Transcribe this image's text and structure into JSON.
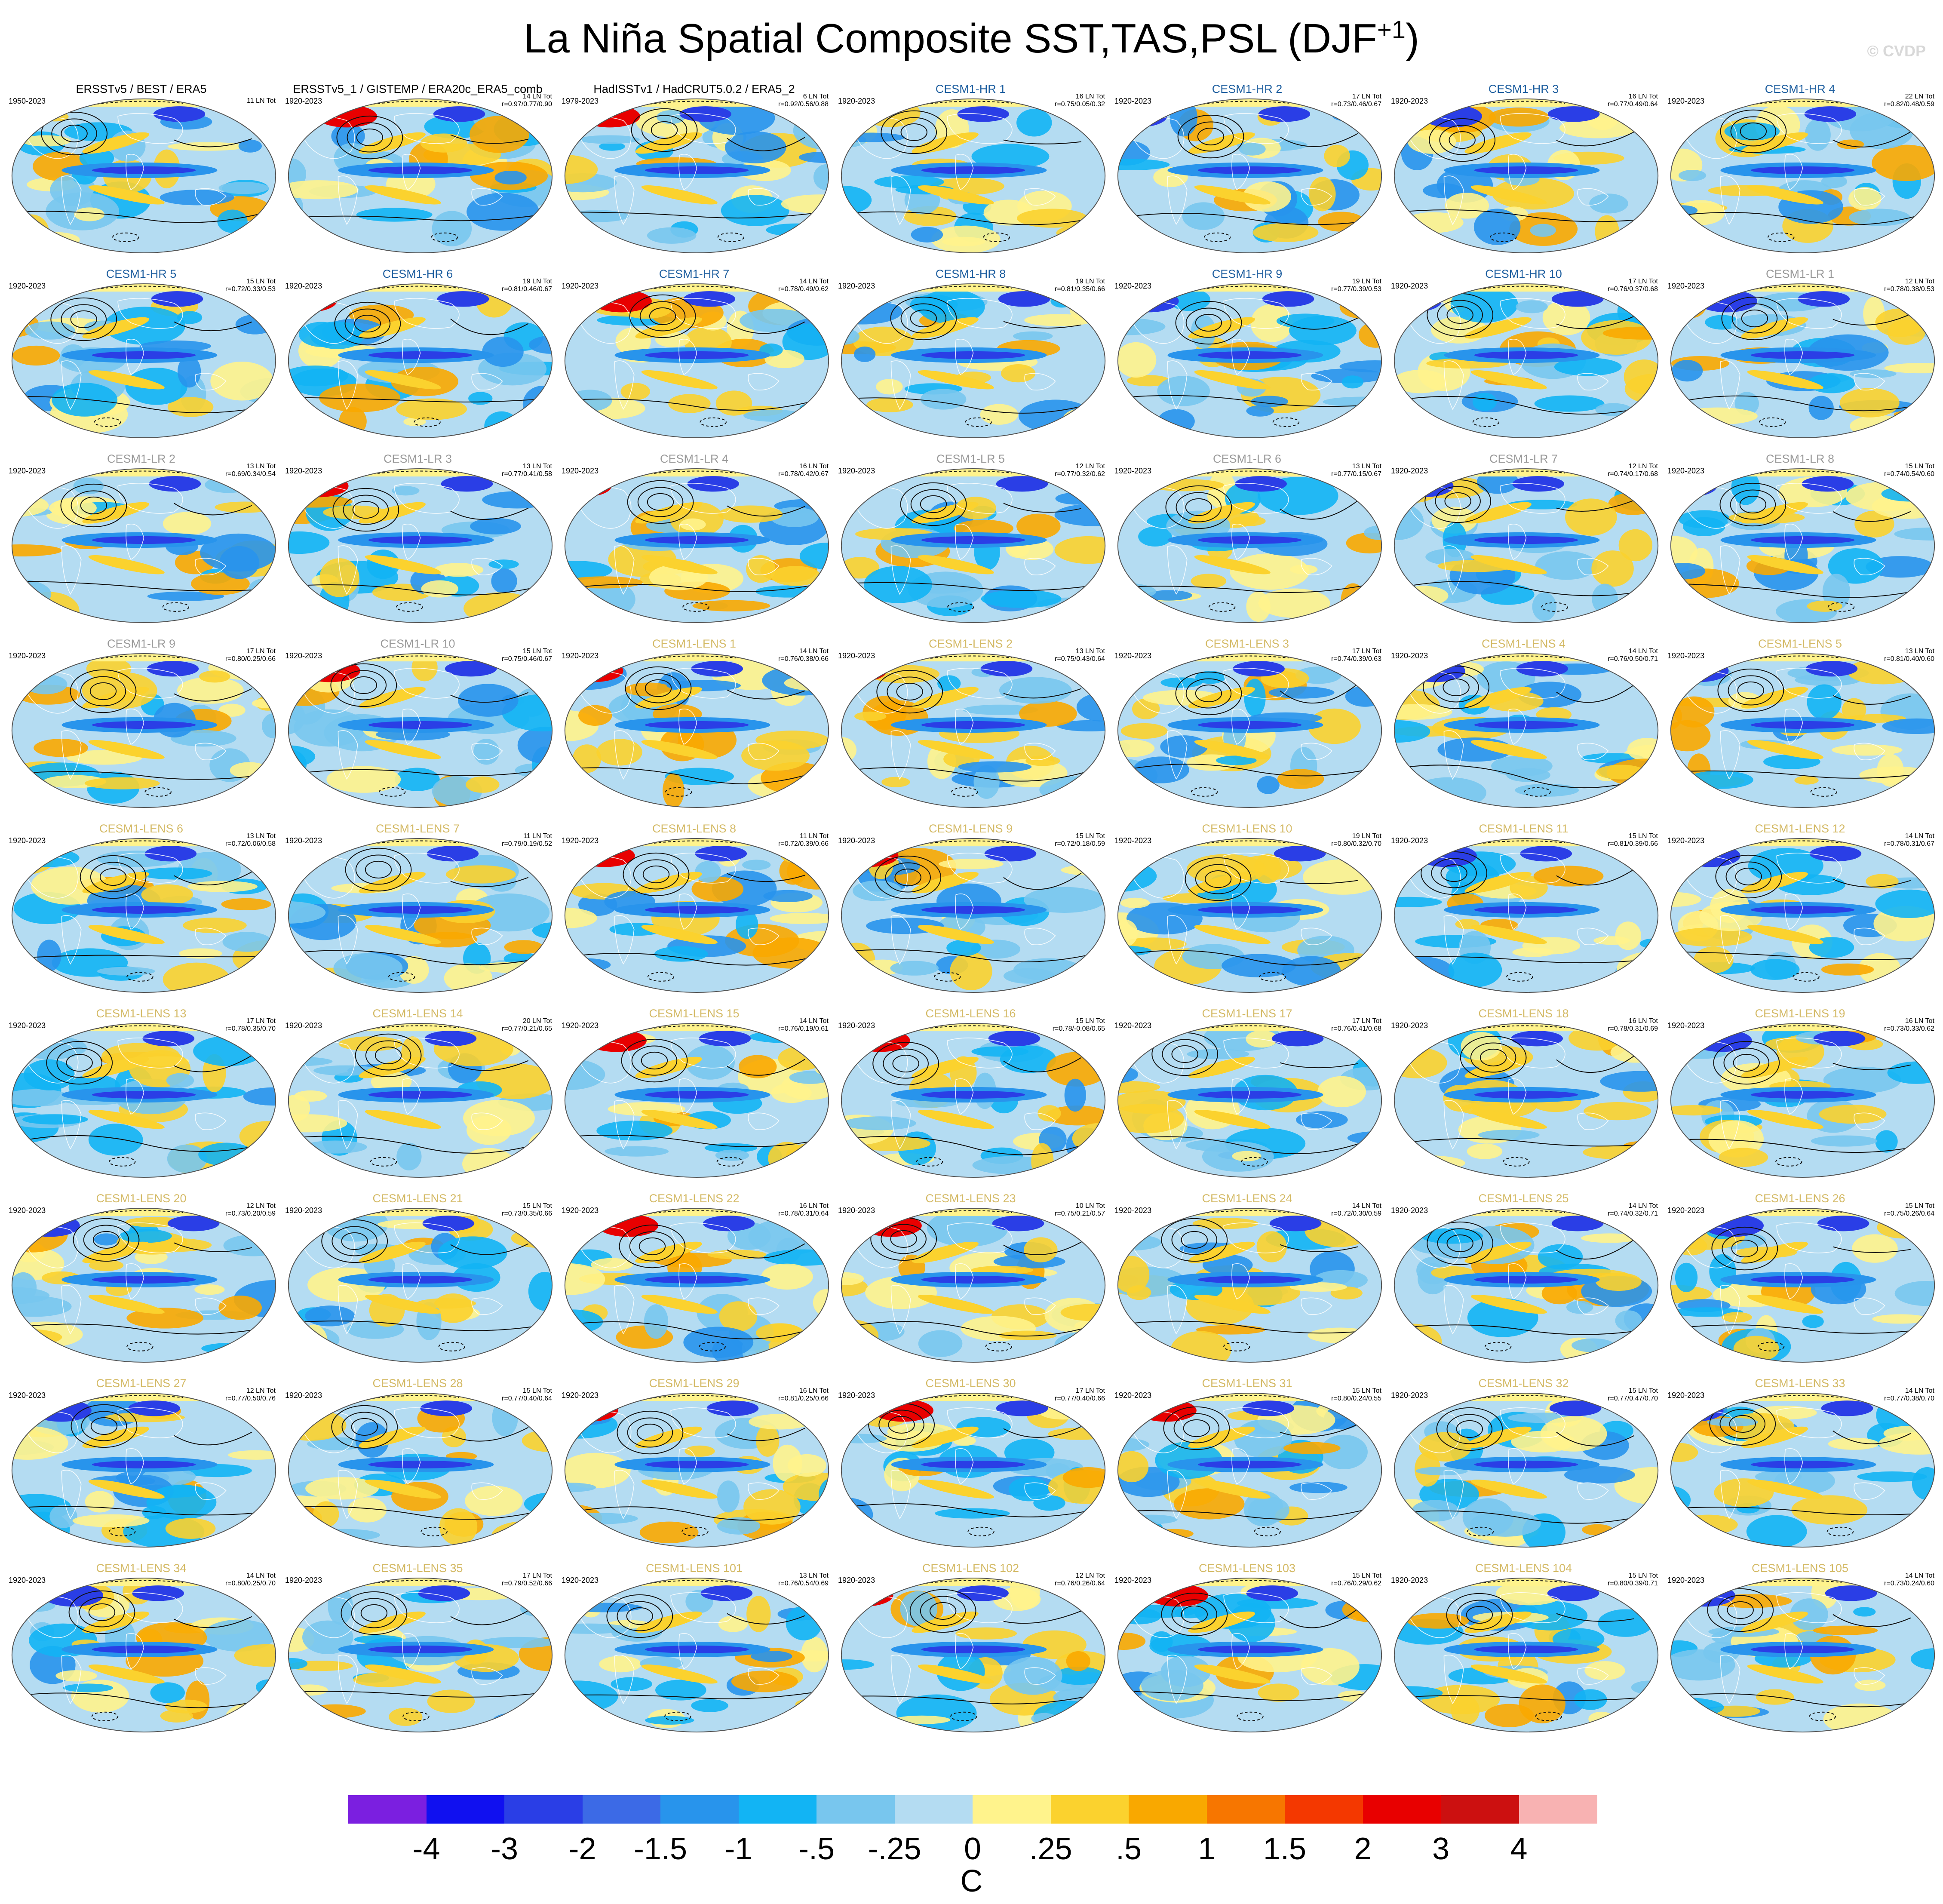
{
  "figure": {
    "title_main": "La Niña Spatial Composite SST,TAS,PSL (DJF",
    "title_sup": "+1",
    "title_close": ")",
    "copyright": "© CVDP"
  },
  "colors": {
    "obs_name": "#000000",
    "hr_name": "#2060a0",
    "lr_name": "#9a9a9a",
    "lens_name": "#d4ba66",
    "land_outline": "#ffffff",
    "globe_outline": "#555555",
    "contour": "#111111"
  },
  "colorbar": {
    "colors": [
      "#7b1fe0",
      "#1010f0",
      "#2a3ee6",
      "#3c6ae6",
      "#2894ec",
      "#12b4f4",
      "#78c6ee",
      "#b4dcf2",
      "#fff38c",
      "#fbd22e",
      "#f9a800",
      "#f77600",
      "#f43800",
      "#e80000",
      "#cc1010",
      "#f8b2b2"
    ],
    "labels": [
      "-4",
      "-3",
      "-2",
      "-1.5",
      "-1",
      "-.5",
      "-.25",
      "0",
      ".25",
      ".5",
      "1",
      "1.5",
      "2",
      "3",
      "4"
    ],
    "units": "C"
  },
  "panels": [
    {
      "name": "ERSSTv5 / BEST / ERA5",
      "group": "obs",
      "years": "1950-2023",
      "count": "11 LN Tot",
      "stats": ""
    },
    {
      "name": "ERSSTv5_1 / GISTEMP / ERA20c_ERA5_comb",
      "group": "obs",
      "years": "1920-2023",
      "count": "14 LN Tot",
      "stats": "r=0.97/0.77/0.90"
    },
    {
      "name": "HadISSTv1 / HadCRUT5.0.2 / ERA5_2",
      "group": "obs",
      "years": "1979-2023",
      "count": "6 LN Tot",
      "stats": "r=0.92/0.56/0.88"
    },
    {
      "name": "CESM1-HR 1",
      "group": "hr",
      "years": "1920-2023",
      "count": "16 LN Tot",
      "stats": "r=0.75/0.05/0.32"
    },
    {
      "name": "CESM1-HR 2",
      "group": "hr",
      "years": "1920-2023",
      "count": "17 LN Tot",
      "stats": "r=0.73/0.46/0.67"
    },
    {
      "name": "CESM1-HR 3",
      "group": "hr",
      "years": "1920-2023",
      "count": "16 LN Tot",
      "stats": "r=0.77/0.49/0.64"
    },
    {
      "name": "CESM1-HR 4",
      "group": "hr",
      "years": "1920-2023",
      "count": "22 LN Tot",
      "stats": "r=0.82/0.48/0.59"
    },
    {
      "name": "CESM1-HR 5",
      "group": "hr",
      "years": "1920-2023",
      "count": "15 LN Tot",
      "stats": "r=0.72/0.33/0.53"
    },
    {
      "name": "CESM1-HR 6",
      "group": "hr",
      "years": "1920-2023",
      "count": "19 LN Tot",
      "stats": "r=0.81/0.46/0.67"
    },
    {
      "name": "CESM1-HR 7",
      "group": "hr",
      "years": "1920-2023",
      "count": "14 LN Tot",
      "stats": "r=0.78/0.49/0.62"
    },
    {
      "name": "CESM1-HR 8",
      "group": "hr",
      "years": "1920-2023",
      "count": "19 LN Tot",
      "stats": "r=0.81/0.35/0.66"
    },
    {
      "name": "CESM1-HR 9",
      "group": "hr",
      "years": "1920-2023",
      "count": "19 LN Tot",
      "stats": "r=0.77/0.39/0.53"
    },
    {
      "name": "CESM1-HR 10",
      "group": "hr",
      "years": "1920-2023",
      "count": "17 LN Tot",
      "stats": "r=0.76/0.37/0.68"
    },
    {
      "name": "CESM1-LR 1",
      "group": "lr",
      "years": "1920-2023",
      "count": "12 LN Tot",
      "stats": "r=0.78/0.38/0.53"
    },
    {
      "name": "CESM1-LR 2",
      "group": "lr",
      "years": "1920-2023",
      "count": "13 LN Tot",
      "stats": "r=0.69/0.34/0.54"
    },
    {
      "name": "CESM1-LR 3",
      "group": "lr",
      "years": "1920-2023",
      "count": "13 LN Tot",
      "stats": "r=0.77/0.41/0.58"
    },
    {
      "name": "CESM1-LR 4",
      "group": "lr",
      "years": "1920-2023",
      "count": "16 LN Tot",
      "stats": "r=0.78/0.42/0.67"
    },
    {
      "name": "CESM1-LR 5",
      "group": "lr",
      "years": "1920-2023",
      "count": "12 LN Tot",
      "stats": "r=0.77/0.32/0.62"
    },
    {
      "name": "CESM1-LR 6",
      "group": "lr",
      "years": "1920-2023",
      "count": "13 LN Tot",
      "stats": "r=0.77/0.15/0.67"
    },
    {
      "name": "CESM1-LR 7",
      "group": "lr",
      "years": "1920-2023",
      "count": "12 LN Tot",
      "stats": "r=0.74/0.17/0.68"
    },
    {
      "name": "CESM1-LR 8",
      "group": "lr",
      "years": "1920-2023",
      "count": "15 LN Tot",
      "stats": "r=0.74/0.54/0.60"
    },
    {
      "name": "CESM1-LR 9",
      "group": "lr",
      "years": "1920-2023",
      "count": "17 LN Tot",
      "stats": "r=0.80/0.25/0.66"
    },
    {
      "name": "CESM1-LR 10",
      "group": "lr",
      "years": "1920-2023",
      "count": "15 LN Tot",
      "stats": "r=0.75/0.46/0.67"
    },
    {
      "name": "CESM1-LENS 1",
      "group": "lens",
      "years": "1920-2023",
      "count": "14 LN Tot",
      "stats": "r=0.76/0.38/0.66"
    },
    {
      "name": "CESM1-LENS 2",
      "group": "lens",
      "years": "1920-2023",
      "count": "13 LN Tot",
      "stats": "r=0.75/0.43/0.64"
    },
    {
      "name": "CESM1-LENS 3",
      "group": "lens",
      "years": "1920-2023",
      "count": "17 LN Tot",
      "stats": "r=0.74/0.39/0.63"
    },
    {
      "name": "CESM1-LENS 4",
      "group": "lens",
      "years": "1920-2023",
      "count": "14 LN Tot",
      "stats": "r=0.76/0.50/0.71"
    },
    {
      "name": "CESM1-LENS 5",
      "group": "lens",
      "years": "1920-2023",
      "count": "13 LN Tot",
      "stats": "r=0.81/0.40/0.60"
    },
    {
      "name": "CESM1-LENS 6",
      "group": "lens",
      "years": "1920-2023",
      "count": "13 LN Tot",
      "stats": "r=0.72/0.06/0.58"
    },
    {
      "name": "CESM1-LENS 7",
      "group": "lens",
      "years": "1920-2023",
      "count": "11 LN Tot",
      "stats": "r=0.79/0.19/0.52"
    },
    {
      "name": "CESM1-LENS 8",
      "group": "lens",
      "years": "1920-2023",
      "count": "11 LN Tot",
      "stats": "r=0.72/0.39/0.66"
    },
    {
      "name": "CESM1-LENS 9",
      "group": "lens",
      "years": "1920-2023",
      "count": "15 LN Tot",
      "stats": "r=0.72/0.18/0.59"
    },
    {
      "name": "CESM1-LENS 10",
      "group": "lens",
      "years": "1920-2023",
      "count": "19 LN Tot",
      "stats": "r=0.80/0.32/0.70"
    },
    {
      "name": "CESM1-LENS 11",
      "group": "lens",
      "years": "1920-2023",
      "count": "15 LN Tot",
      "stats": "r=0.81/0.39/0.66"
    },
    {
      "name": "CESM1-LENS 12",
      "group": "lens",
      "years": "1920-2023",
      "count": "14 LN Tot",
      "stats": "r=0.78/0.31/0.67"
    },
    {
      "name": "CESM1-LENS 13",
      "group": "lens",
      "years": "1920-2023",
      "count": "17 LN Tot",
      "stats": "r=0.78/0.35/0.70"
    },
    {
      "name": "CESM1-LENS 14",
      "group": "lens",
      "years": "1920-2023",
      "count": "20 LN Tot",
      "stats": "r=0.77/0.21/0.65"
    },
    {
      "name": "CESM1-LENS 15",
      "group": "lens",
      "years": "1920-2023",
      "count": "14 LN Tot",
      "stats": "r=0.76/0.19/0.61"
    },
    {
      "name": "CESM1-LENS 16",
      "group": "lens",
      "years": "1920-2023",
      "count": "15 LN Tot",
      "stats": "r=0.78/-0.08/0.65"
    },
    {
      "name": "CESM1-LENS 17",
      "group": "lens",
      "years": "1920-2023",
      "count": "17 LN Tot",
      "stats": "r=0.76/0.41/0.68"
    },
    {
      "name": "CESM1-LENS 18",
      "group": "lens",
      "years": "1920-2023",
      "count": "16 LN Tot",
      "stats": "r=0.78/0.31/0.69"
    },
    {
      "name": "CESM1-LENS 19",
      "group": "lens",
      "years": "1920-2023",
      "count": "16 LN Tot",
      "stats": "r=0.73/0.33/0.62"
    },
    {
      "name": "CESM1-LENS 20",
      "group": "lens",
      "years": "1920-2023",
      "count": "12 LN Tot",
      "stats": "r=0.73/0.20/0.59"
    },
    {
      "name": "CESM1-LENS 21",
      "group": "lens",
      "years": "1920-2023",
      "count": "15 LN Tot",
      "stats": "r=0.73/0.35/0.66"
    },
    {
      "name": "CESM1-LENS 22",
      "group": "lens",
      "years": "1920-2023",
      "count": "16 LN Tot",
      "stats": "r=0.78/0.31/0.64"
    },
    {
      "name": "CESM1-LENS 23",
      "group": "lens",
      "years": "1920-2023",
      "count": "10 LN Tot",
      "stats": "r=0.75/0.21/0.57"
    },
    {
      "name": "CESM1-LENS 24",
      "group": "lens",
      "years": "1920-2023",
      "count": "14 LN Tot",
      "stats": "r=0.72/0.30/0.59"
    },
    {
      "name": "CESM1-LENS 25",
      "group": "lens",
      "years": "1920-2023",
      "count": "14 LN Tot",
      "stats": "r=0.74/0.32/0.71"
    },
    {
      "name": "CESM1-LENS 26",
      "group": "lens",
      "years": "1920-2023",
      "count": "15 LN Tot",
      "stats": "r=0.75/0.26/0.64"
    },
    {
      "name": "CESM1-LENS 27",
      "group": "lens",
      "years": "1920-2023",
      "count": "12 LN Tot",
      "stats": "r=0.77/0.50/0.76"
    },
    {
      "name": "CESM1-LENS 28",
      "group": "lens",
      "years": "1920-2023",
      "count": "15 LN Tot",
      "stats": "r=0.77/0.40/0.64"
    },
    {
      "name": "CESM1-LENS 29",
      "group": "lens",
      "years": "1920-2023",
      "count": "16 LN Tot",
      "stats": "r=0.81/0.25/0.66"
    },
    {
      "name": "CESM1-LENS 30",
      "group": "lens",
      "years": "1920-2023",
      "count": "17 LN Tot",
      "stats": "r=0.77/0.40/0.66"
    },
    {
      "name": "CESM1-LENS 31",
      "group": "lens",
      "years": "1920-2023",
      "count": "15 LN Tot",
      "stats": "r=0.80/0.24/0.55"
    },
    {
      "name": "CESM1-LENS 32",
      "group": "lens",
      "years": "1920-2023",
      "count": "15 LN Tot",
      "stats": "r=0.77/0.47/0.70"
    },
    {
      "name": "CESM1-LENS 33",
      "group": "lens",
      "years": "1920-2023",
      "count": "14 LN Tot",
      "stats": "r=0.77/0.38/0.70"
    },
    {
      "name": "CESM1-LENS 34",
      "group": "lens",
      "years": "1920-2023",
      "count": "14 LN Tot",
      "stats": "r=0.80/0.25/0.70"
    },
    {
      "name": "CESM1-LENS 35",
      "group": "lens",
      "years": "1920-2023",
      "count": "17 LN Tot",
      "stats": "r=0.79/0.52/0.66"
    },
    {
      "name": "CESM1-LENS 101",
      "group": "lens",
      "years": "1920-2023",
      "count": "13 LN Tot",
      "stats": "r=0.76/0.54/0.69"
    },
    {
      "name": "CESM1-LENS 102",
      "group": "lens",
      "years": "1920-2023",
      "count": "12 LN Tot",
      "stats": "r=0.76/0.26/0.64"
    },
    {
      "name": "CESM1-LENS 103",
      "group": "lens",
      "years": "1920-2023",
      "count": "15 LN Tot",
      "stats": "r=0.76/0.29/0.62"
    },
    {
      "name": "CESM1-LENS 104",
      "group": "lens",
      "years": "1920-2023",
      "count": "15 LN Tot",
      "stats": "r=0.80/0.39/0.71"
    },
    {
      "name": "CESM1-LENS 105",
      "group": "lens",
      "years": "1920-2023",
      "count": "14 LN Tot",
      "stats": "r=0.73/0.24/0.60"
    }
  ]
}
